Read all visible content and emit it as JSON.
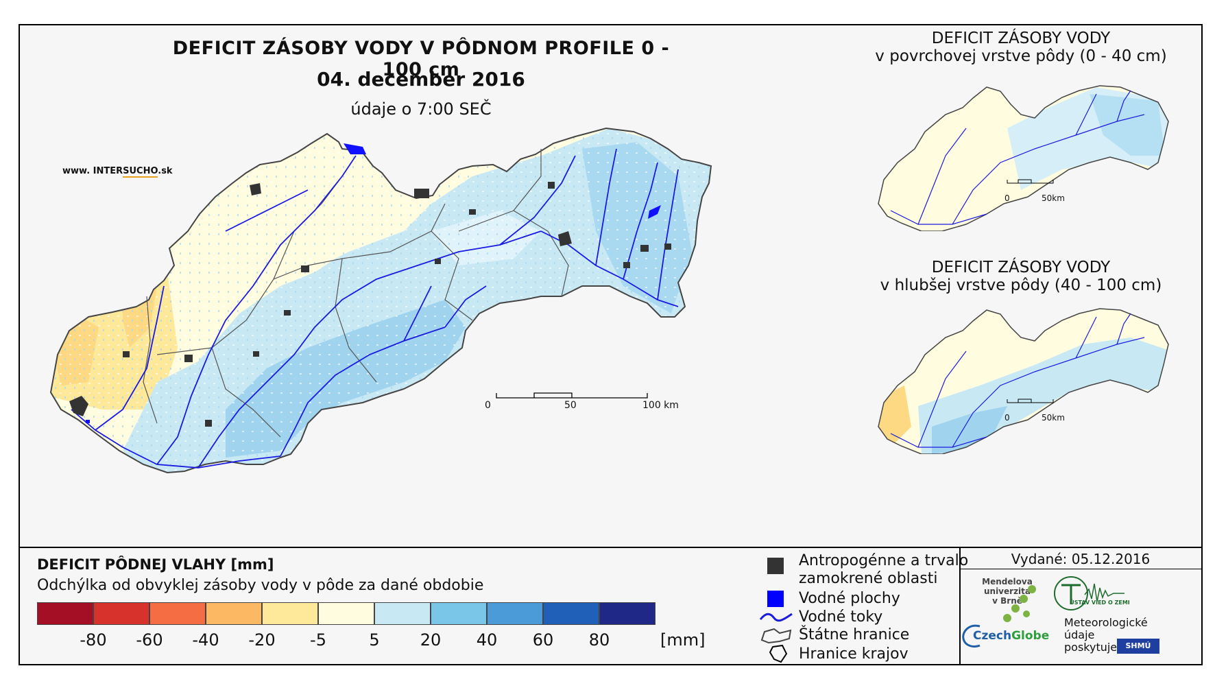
{
  "main": {
    "title": "DEFICIT ZÁSOBY VODY V PÔDNOM PROFILE 0 - 100 cm",
    "date": "04. december 2016",
    "time_note": "údaje o 7:00 SEČ",
    "website_prefix": "www. INTER",
    "website_highlight": "SUCHO",
    "website_suffix": ".sk",
    "scale": {
      "labels": [
        "0",
        "50",
        "100 km"
      ]
    }
  },
  "insets": [
    {
      "title_line1": "DEFICIT ZÁSOBY VODY",
      "title_line2": "v povrchovej vrstve pôdy (0 - 40 cm)",
      "scale_labels": [
        "0",
        "50km"
      ]
    },
    {
      "title_line1": "DEFICIT ZÁSOBY VODY",
      "title_line2": "v hlubšej vrstve pôdy (40 - 100 cm)",
      "scale_labels": [
        "0",
        "50km"
      ]
    }
  ],
  "legend": {
    "title": "DEFICIT PÔDNEJ VLAHY [mm]",
    "subtitle": "Odchýlka od obvyklej zásoby vody v pôde za dané obdobie",
    "colors": [
      "#a50f26",
      "#d7322c",
      "#f46d43",
      "#fdb863",
      "#fee89a",
      "#fffce0",
      "#c8e8f4",
      "#79c6e8",
      "#4a9bd7",
      "#2060b8",
      "#1f2887"
    ],
    "ticks": [
      "-80",
      "-60",
      "-40",
      "-20",
      "-5",
      "5",
      "20",
      "40",
      "60",
      "80"
    ],
    "unit": "[mm]"
  },
  "symbols": {
    "anthropogenic_line1": "Antropogénne a trvalo",
    "anthropogenic_line2": "zamokrené oblasti",
    "water_bodies": "Vodné plochy",
    "water_streams": "Vodné toky",
    "state_border": "Štátne hranice",
    "region_border": "Hranice krajov"
  },
  "issued": "Vydané: 05.12.2016",
  "logos": {
    "mendel_line1": "Mendelova",
    "mendel_line2": "univerzita",
    "mendel_line3": "v Brně",
    "ustav": "ÚSTAV VIED O ZEMI",
    "czechglobe_a": "Czech",
    "czechglobe_b": "Globe",
    "shmu": "SHMÚ"
  },
  "data_providers": {
    "line1": "Meteorologické",
    "line2": "údaje",
    "line3": "poskytuje:"
  }
}
